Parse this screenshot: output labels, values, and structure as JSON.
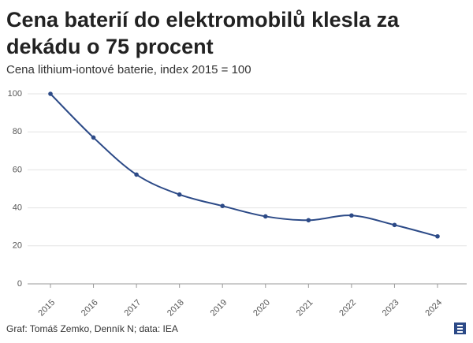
{
  "chart_data": {
    "type": "line",
    "title": "Cena baterií do elektromobilů klesla za dekádu o 75 procent",
    "subtitle": "Cena lithium-iontové baterie, index 2015 = 100",
    "categories": [
      "2015",
      "2016",
      "2017",
      "2018",
      "2019",
      "2020",
      "2021",
      "2022",
      "2023",
      "2024"
    ],
    "values": [
      100,
      77,
      57.5,
      47,
      41,
      35.5,
      33.5,
      36,
      31,
      25
    ],
    "color": "#2c4a87",
    "ylim": [
      0,
      100
    ],
    "yticks": [
      0,
      20,
      40,
      60,
      80,
      100
    ],
    "grid": true,
    "source": "Graf: Tomáš Zemko, Denník N; data: IEA"
  }
}
